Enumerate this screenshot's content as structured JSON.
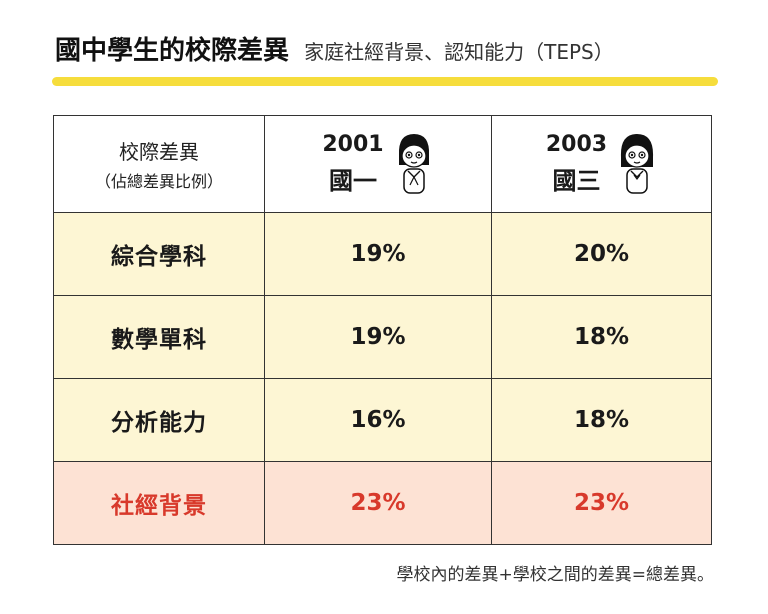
{
  "header": {
    "title": "國中學生的校際差異",
    "subtitle": "家庭社經背景、認知能力（TEPS）"
  },
  "table": {
    "corner": {
      "main": "校際差異",
      "sub": "（佔總差異比例）"
    },
    "columns": [
      {
        "year": "2001",
        "grade": "國一"
      },
      {
        "year": "2003",
        "grade": "國三"
      }
    ],
    "rows": [
      {
        "label": "綜合學科",
        "values": [
          "19%",
          "20%"
        ],
        "highlight": false
      },
      {
        "label": "數學單科",
        "values": [
          "19%",
          "18%"
        ],
        "highlight": false
      },
      {
        "label": "分析能力",
        "values": [
          "16%",
          "18%"
        ],
        "highlight": false
      },
      {
        "label": "社經背景",
        "values": [
          "23%",
          "23%"
        ],
        "highlight": true
      }
    ]
  },
  "footnote": "學校內的差異+學校之間的差異=總差異。",
  "colors": {
    "accent_bar": "#f6dd3c",
    "row_yellow": "#fdf6d4",
    "row_pink": "#fde2d4",
    "highlight_text": "#d8392b"
  },
  "icons": [
    "student-girl-icon",
    "student-girl-icon"
  ]
}
